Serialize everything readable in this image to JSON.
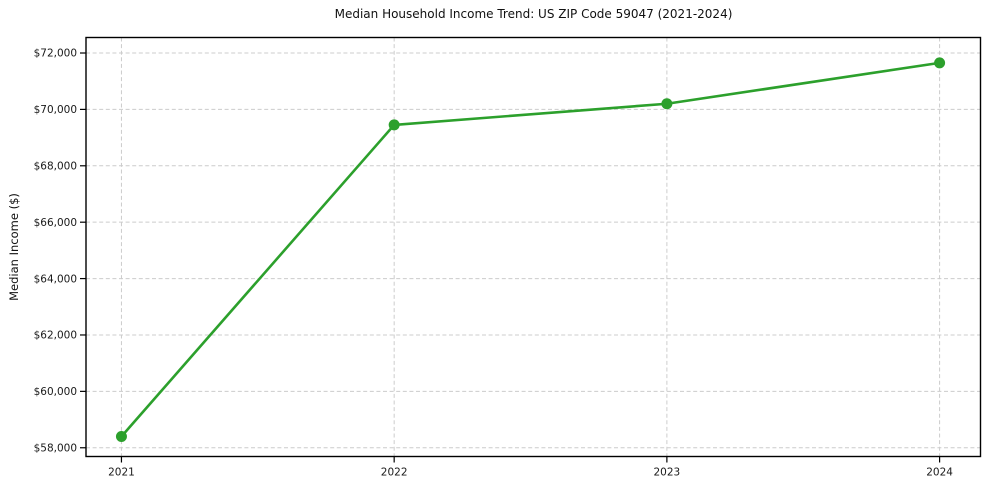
{
  "chart_data": {
    "type": "line",
    "title": "Median Household Income Trend: US ZIP Code 59047 (2021-2024)",
    "xlabel": "",
    "ylabel": "Median Income ($)",
    "x": [
      2021,
      2022,
      2023,
      2024
    ],
    "series": [
      {
        "name": "Median Household Income",
        "values": [
          58400,
          69450,
          70200,
          71650
        ]
      }
    ],
    "xticks": [
      2021,
      2022,
      2023,
      2024
    ],
    "xtick_labels": [
      "2021",
      "2022",
      "2023",
      "2024"
    ],
    "yticks": [
      58000,
      60000,
      62000,
      64000,
      66000,
      68000,
      70000,
      72000
    ],
    "ytick_labels": [
      "$58,000",
      "$60,000",
      "$62,000",
      "$64,000",
      "$66,000",
      "$68,000",
      "$70,000",
      "$72,000"
    ],
    "xlim": [
      2020.87,
      2024.15
    ],
    "ylim": [
      57690,
      72550
    ],
    "grid": true,
    "legend": false,
    "marker": "o",
    "line_color": "#2ca02c",
    "grid_color": "#cccccc",
    "spine_color": "#000000",
    "tick_label_color": "#1a1a1a",
    "background": "#ffffff"
  }
}
